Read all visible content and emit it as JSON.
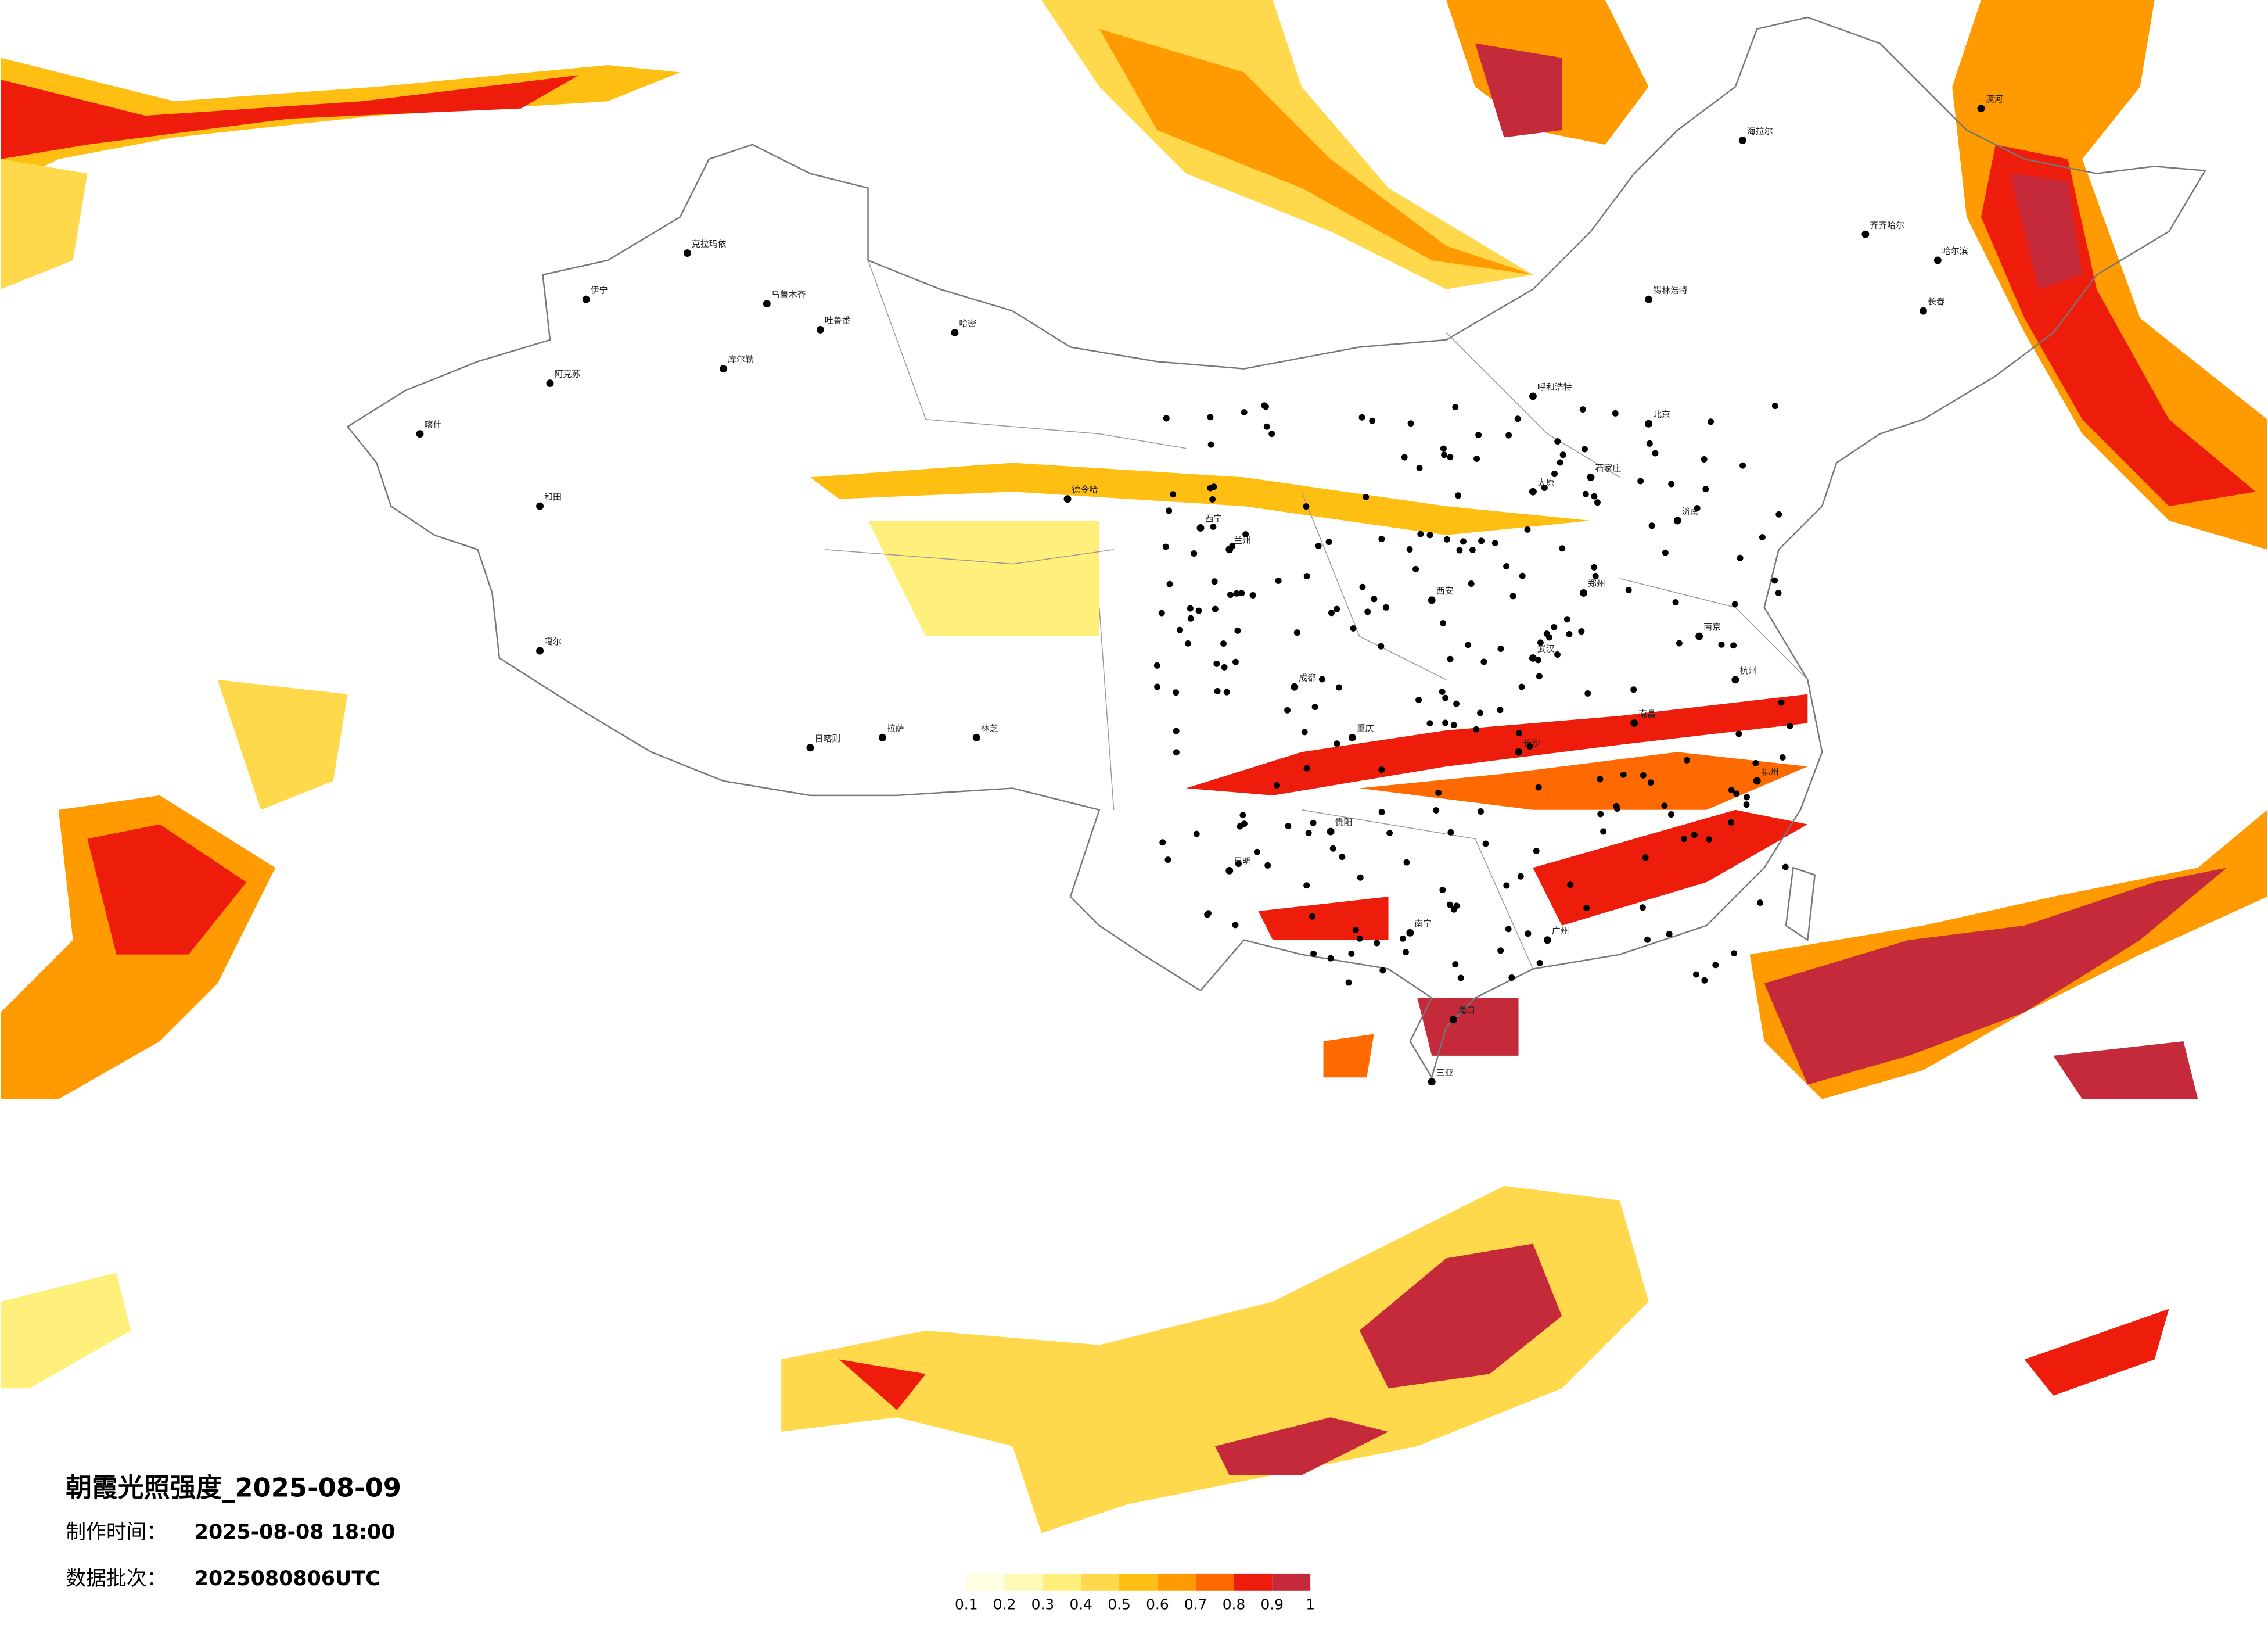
{
  "header": {
    "title": "朝霞光照强度_2025-08-09",
    "made_label": "制作时间：",
    "made_time": "2025-08-08 18:00",
    "batch_label": "数据批次：",
    "batch": "2025080806UTC"
  },
  "legend": {
    "colors": [
      "#fffde2",
      "#fff9b8",
      "#fff07c",
      "#ffd84c",
      "#ffbf12",
      "#ff9a00",
      "#ff6a00",
      "#ee1c0a",
      "#c42a3a"
    ],
    "ticks": [
      0.1,
      0.2,
      0.3,
      0.4,
      0.5,
      0.6,
      0.7,
      0.8,
      0.9,
      1
    ]
  },
  "cities": [
    "伊宁",
    "克拉玛依",
    "乌鲁木齐",
    "吐鲁番",
    "阿克苏",
    "喀什",
    "和田",
    "库尔勒",
    "哈密",
    "德令哈",
    "噶尔",
    "日喀则",
    "拉萨",
    "林芝",
    "海拉尔",
    "漠河",
    "齐齐哈尔",
    "哈尔滨",
    "长春",
    "锡林浩特",
    "呼和浩特",
    "北京",
    "石家庄",
    "太原",
    "济南",
    "郑州",
    "西安",
    "兰州",
    "西宁",
    "成都",
    "重庆",
    "武汉",
    "长沙",
    "南昌",
    "杭州",
    "南京",
    "福州",
    "贵阳",
    "昆明",
    "南宁",
    "广州",
    "海口",
    "三亚"
  ]
}
